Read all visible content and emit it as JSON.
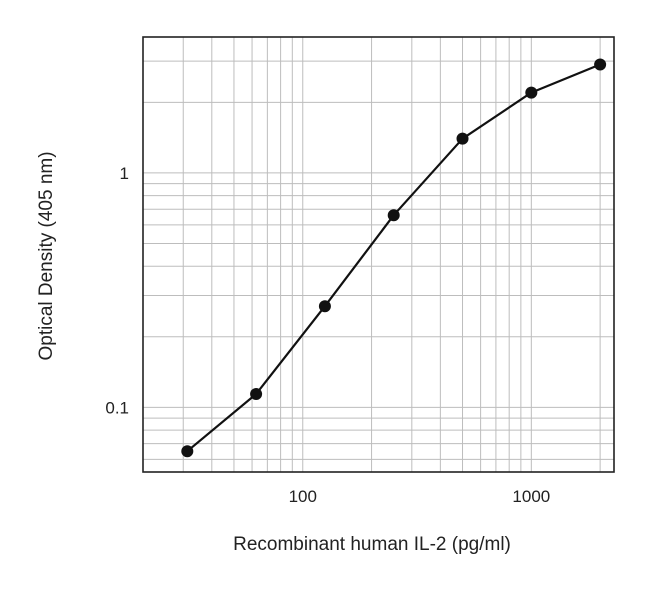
{
  "chart_data": {
    "type": "line",
    "xlabel": "Recombinant human IL-2 (pg/ml)",
    "ylabel": "Optical Density (405 nm)",
    "x_scale": "log",
    "y_scale": "log",
    "xlim": [
      20,
      2300
    ],
    "ylim": [
      0.053,
      3.8
    ],
    "x_ticks": [
      {
        "value": 100,
        "label": "100"
      },
      {
        "value": 1000,
        "label": "1000"
      }
    ],
    "y_ticks": [
      {
        "value": 0.1,
        "label": "0.1"
      },
      {
        "value": 1,
        "label": "1"
      }
    ],
    "grid": true,
    "series": [
      {
        "x": [
          31.25,
          62.5,
          125,
          250,
          500,
          1000,
          2000
        ],
        "y": [
          0.065,
          0.114,
          0.27,
          0.66,
          1.4,
          2.2,
          2.9
        ]
      }
    ],
    "colors": {
      "line": "#111111",
      "marker": "#111111",
      "grid": "#bdbdbd",
      "frame": "#222222"
    }
  }
}
